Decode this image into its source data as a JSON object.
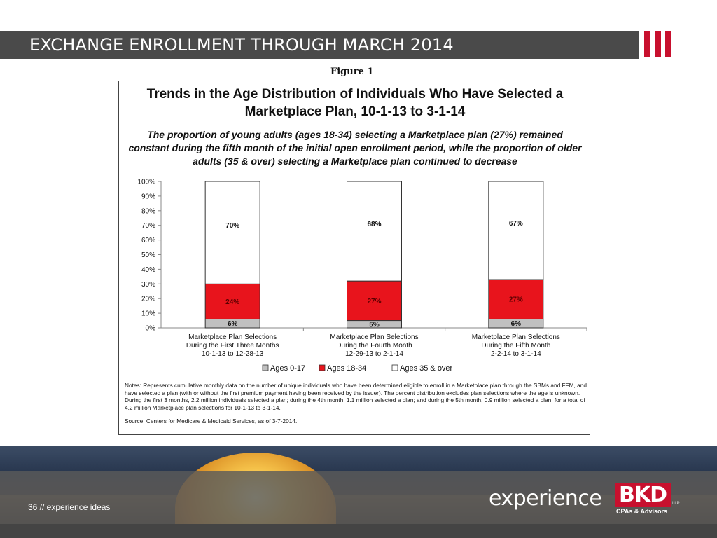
{
  "slide": {
    "title": "EXCHANGE ENROLLMENT THROUGH MARCH 2014",
    "accent_color": "#c8102e",
    "figure_label": "Figure 1",
    "page_label": "36 // experience ideas",
    "brand_word": "experience",
    "brand_mark": "BKD",
    "brand_llp": "LLP",
    "brand_tagline": "CPAs & Advisors"
  },
  "figure": {
    "heading_line1": "Trends in the Age Distribution of Individuals Who Have Selected a",
    "heading_line2": "Marketplace Plan, 10-1-13 to 3-1-14",
    "subtitle": "The proportion of young adults (ages 18-34) selecting a Marketplace plan (27%) remained constant during the fifth month of the initial open enrollment period, while the proportion of older adults (35 & over) selecting a Marketplace plan continued to decrease",
    "notes": "Notes: Represents cumulative monthly data on the number of unique individuals who have been determined eligible to enroll in a Marketplace plan through the SBMs and FFM, and have selected a plan (with or without the first premium payment having been received by the issuer). The percent distribution excludes plan selections where the age is unknown. During the first 3 months, 2.2 million individuals selected a plan; during the 4th month, 1.1 million selected a plan; and during the 5th month, 0.9 million selected a plan, for a total of 4.2 million Marketplace plan selections for 10-1-13 to 3-1-14.",
    "source": "Source: Centers for Medicare & Medicaid Services, as of 3-7-2014."
  },
  "chart_data": {
    "type": "bar",
    "stacked": true,
    "categories": [
      [
        "Marketplace Plan Selections",
        "During the First Three Months",
        "10-1-13 to 12-28-13"
      ],
      [
        "Marketplace Plan Selections",
        "During the Fourth Month",
        "12-29-13 to 2-1-14"
      ],
      [
        "Marketplace Plan Selections",
        "During the Fifth Month",
        "2-2-14 to 3-1-14"
      ]
    ],
    "series": [
      {
        "name": "Ages 0-17",
        "values": [
          6,
          5,
          6
        ],
        "labels": [
          "6%",
          "5%",
          "6%"
        ],
        "color": "#c0c0c0"
      },
      {
        "name": "Ages 18-34",
        "values": [
          24,
          27,
          27
        ],
        "labels": [
          "24%",
          "27%",
          "27%"
        ],
        "color": "#e8141c"
      },
      {
        "name": "Ages 35 & over",
        "values": [
          70,
          68,
          67
        ],
        "labels": [
          "70%",
          "68%",
          "67%"
        ],
        "color": "#ffffff"
      }
    ],
    "yticks": [
      "0%",
      "10%",
      "20%",
      "30%",
      "40%",
      "50%",
      "60%",
      "70%",
      "80%",
      "90%",
      "100%"
    ],
    "ylim": [
      0,
      100
    ],
    "legend_position": "bottom",
    "grid": false
  }
}
